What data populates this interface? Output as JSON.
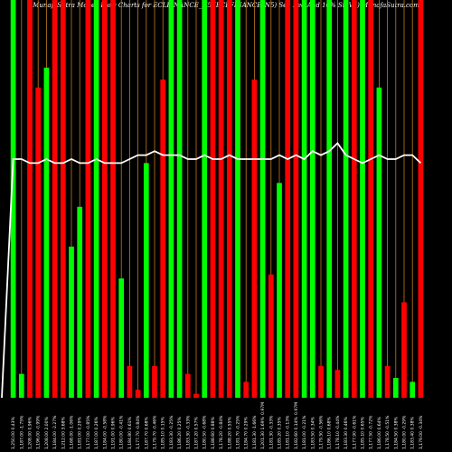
{
  "chart_data": {
    "type": "bar",
    "title": "MunafaSutra  Money Flow  Charts for ECLFINANCE_N5    (ECLFINANCE_N5)    See Red And 10% Sr. Vii) MunafaSutra.com",
    "colors": {
      "up": "#00ff00",
      "down": "#ff0000",
      "grid": "#c47a1e",
      "line": "#ffffff",
      "background": "#000000",
      "price_text": "#ffffff"
    },
    "ylim": [
      0,
      100
    ],
    "line_ylim": [
      0,
      100
    ],
    "categories": [
      "1,250.00 0.43%",
      "1,187.00 -1.75%",
      "1,208.00 0.96%",
      "1,196.00 -0.99%",
      "1,208.00 2.00%",
      "1,184.00 -2.27%",
      "1,212.00 3.68%",
      "1,168.00 -1.06%",
      "1,181.00 0.29%",
      "1,177.00 -0.85%",
      "1,187.00 0.26%",
      "1,184.00 -0.58%",
      "1,191.00 0.96%",
      "1,180.00 -0.41%",
      "1,184.80 0.61%",
      "1,177.70 -0.84%",
      "1,187.70 0.68%",
      "1,179.70 -0.46%",
      "1,185.10 0.15%",
      "1,183.30 -0.25%",
      "1,186.20 0.25%",
      "1,183.30 -0.33%",
      "1,187.20 0.57%",
      "1,180.50 -0.68%",
      "1,188.60 0.88%",
      "1,178.20 -0.84%",
      "1,188.20 0.55%",
      "1,181.70 -0.25%",
      "1,184.70 0.29%",
      "1,181.30 -1.66%",
      "1,201.30 1.69%",
      "1,181.30 -0.33%",
      "1,185.20 0.35%",
      "1,181.10 -0.13%",
      "1,182.60 0.14%",
      "1,181.00 -0.21%",
      "1,183.50 0.34%",
      "1,179.50 -0.56%",
      "1,186.10 0.68%",
      "1,178.10 -0.44%",
      "1,183.30 0.46%",
      "1,177.90 -0.61%",
      "1,185.10 0.65%",
      "1,177.50 -0.72%",
      "1,186.00 0.64%",
      "1,178.50 -0.51%",
      "1,184.50 0.38%",
      "1,180.00 -0.29%",
      "1,183.40 0.38%",
      "1,179.00 -0.34%"
    ],
    "bar_colors": [
      "g",
      "g",
      "r",
      "r",
      "g",
      "r",
      "r",
      "g",
      "g",
      "r",
      "g",
      "r",
      "r",
      "g",
      "r",
      "r",
      "g",
      "r",
      "r",
      "g",
      "g",
      "r",
      "r",
      "g",
      "r",
      "r",
      "r",
      "g",
      "r",
      "r",
      "g",
      "r",
      "g",
      "r",
      "r",
      "g",
      "g",
      "r",
      "g",
      "r",
      "g",
      "r",
      "g",
      "r",
      "g",
      "r",
      "g",
      "r",
      "g",
      "r"
    ],
    "values": [
      100,
      6,
      100,
      78,
      83,
      100,
      100,
      38,
      48,
      100,
      100,
      100,
      100,
      30,
      8,
      2,
      59,
      8,
      80,
      100,
      100,
      6,
      1,
      100,
      100,
      100,
      100,
      100,
      4,
      80,
      100,
      31,
      54,
      100,
      100,
      100,
      100,
      8,
      100,
      7,
      100,
      100,
      100,
      100,
      78,
      8,
      5,
      24,
      4,
      100
    ],
    "line": [
      60,
      60,
      59,
      59,
      60,
      59,
      59,
      60,
      59,
      59,
      60,
      59,
      59,
      59,
      60,
      61,
      61,
      62,
      61,
      61,
      61,
      60,
      60,
      61,
      60,
      60,
      61,
      60,
      60,
      60,
      60,
      60,
      61,
      60,
      61,
      60,
      62,
      61,
      62,
      64,
      61,
      60,
      59,
      60,
      61,
      60,
      60,
      61,
      61,
      59
    ],
    "volume_labels": [
      {
        "index": 30,
        "text": "0.97M"
      },
      {
        "index": 34,
        "text": "0.97M"
      }
    ]
  }
}
